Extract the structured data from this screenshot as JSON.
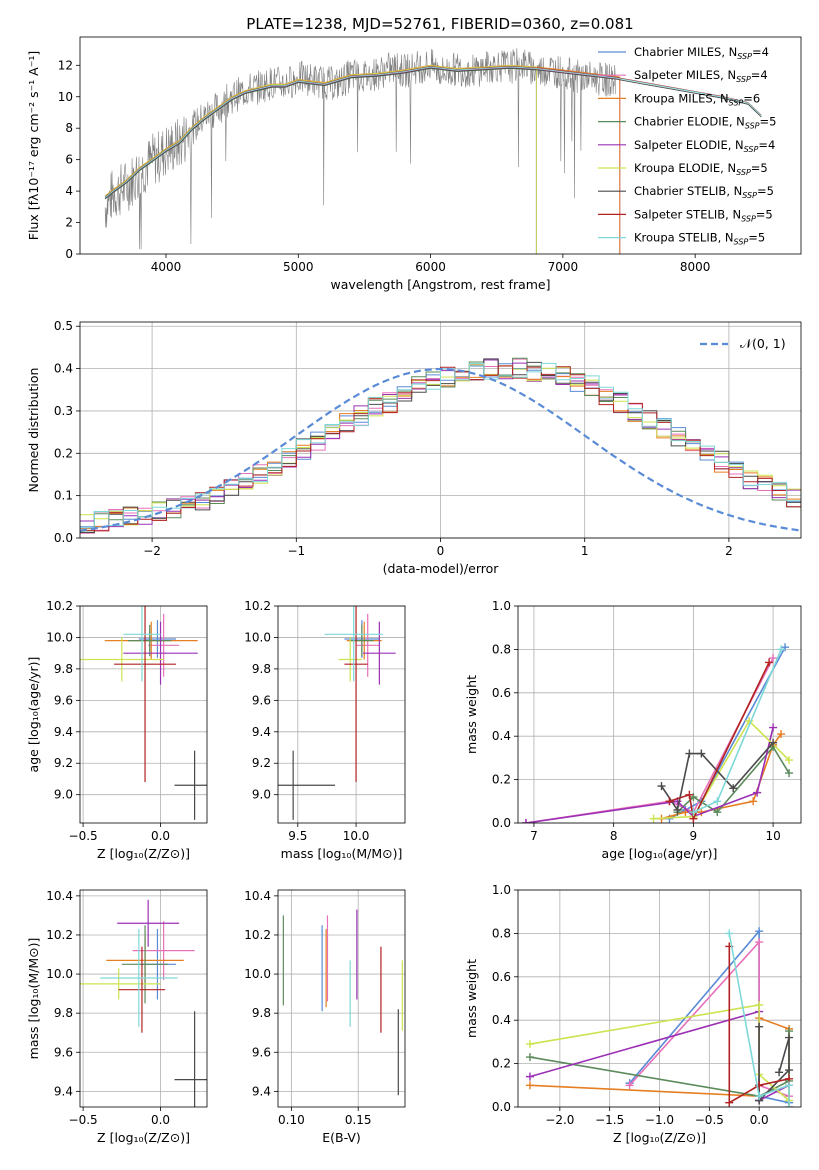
{
  "figure": {
    "title": "PLATE=1238, MJD=52761, FIBERID=0360, z=0.081"
  },
  "colors": {
    "Chabrier MILES": "#5a8bd6",
    "Salpeter MILES": "#e770b9",
    "Kroupa MILES": "#e67e22",
    "Chabrier ELODIE": "#5b8a5b",
    "Salpeter ELODIE": "#9b30b5",
    "Kroupa ELODIE": "#cde34f",
    "Chabrier STELIB": "#4a4a4a",
    "Salpeter STELIB": "#b22222",
    "Kroupa STELIB": "#7fd8d8",
    "data": "#808080",
    "normal": "#5a8bd6"
  },
  "chart_data": [
    {
      "id": "spectrum",
      "type": "line",
      "xlabel": "wavelength [Angstrom, rest frame]",
      "ylabel": "Flux [fλ10⁻¹⁷ erg cm⁻² s⁻¹ A⁻¹]",
      "xlim": [
        3350,
        8800
      ],
      "ylim": [
        0,
        13.8
      ],
      "xticks": [
        4000,
        5000,
        6000,
        7000,
        8000
      ],
      "yticks": [
        0,
        2,
        4,
        6,
        8,
        10,
        12
      ],
      "grid": false,
      "legend_position": "right",
      "data_line": {
        "x": [
          3540,
          3600,
          3700,
          3800,
          3900,
          3950,
          4000,
          4100,
          4200,
          4300,
          4400,
          4500,
          4600,
          4700,
          4800,
          4900,
          5000,
          5100,
          5200,
          5300,
          5400,
          5500,
          5600,
          5700,
          5800,
          5900,
          6000,
          6100,
          6200,
          6300,
          6400,
          6500,
          6600,
          6700,
          6800,
          6900,
          7000,
          7100,
          7200,
          7300,
          7400
        ],
        "y": [
          3.0,
          3.8,
          4.3,
          5.2,
          6.0,
          6.2,
          6.6,
          7.0,
          8.0,
          8.8,
          9.3,
          10.0,
          10.4,
          10.6,
          10.9,
          10.8,
          11.2,
          11.1,
          10.9,
          10.8,
          11.4,
          11.3,
          11.5,
          11.8,
          11.6,
          11.9,
          12.0,
          11.5,
          11.8,
          11.6,
          11.8,
          12.0,
          11.9,
          12.1,
          11.6,
          11.8,
          11.5,
          11.3,
          11.2,
          11.1,
          11.0
        ]
      },
      "model_line": {
        "x": [
          3540,
          3600,
          3700,
          3800,
          3900,
          4000,
          4100,
          4200,
          4300,
          4400,
          4500,
          4600,
          4700,
          4800,
          4900,
          5000,
          5200,
          5400,
          5600,
          5800,
          6000,
          6200,
          6400,
          6600,
          6800,
          7000,
          7200,
          7400,
          7600,
          7800,
          8000,
          8200,
          8400,
          8500
        ],
        "y": [
          3.6,
          4.0,
          4.6,
          5.4,
          6.0,
          6.6,
          7.1,
          8.0,
          8.7,
          9.3,
          9.9,
          10.3,
          10.5,
          10.7,
          10.7,
          11.0,
          10.8,
          11.3,
          11.4,
          11.6,
          11.9,
          11.7,
          11.8,
          11.9,
          11.8,
          11.6,
          11.4,
          11.2,
          10.9,
          10.6,
          10.3,
          10.0,
          9.6,
          8.8
        ]
      },
      "series": [
        {
          "name": "Chabrier MILES, N_SSP=4",
          "cut_x": 7430
        },
        {
          "name": "Salpeter MILES, N_SSP=4",
          "cut_x": 7430
        },
        {
          "name": "Kroupa MILES, N_SSP=6",
          "cut_x": 7430
        },
        {
          "name": "Chabrier ELODIE, N_SSP=5",
          "cut_x": 6800
        },
        {
          "name": "Salpeter ELODIE, N_SSP=4",
          "cut_x": 6800
        },
        {
          "name": "Kroupa ELODIE, N_SSP=5",
          "cut_x": 6800
        },
        {
          "name": "Chabrier STELIB, N_SSP=5",
          "cut_x": 8500
        },
        {
          "name": "Salpeter STELIB, N_SSP=5",
          "cut_x": 8500
        },
        {
          "name": "Kroupa STELIB, N_SSP=5",
          "cut_x": 8500
        }
      ]
    },
    {
      "id": "residuals",
      "type": "bar",
      "xlabel": "(data-model)/error",
      "ylabel": "Normed distribution",
      "xlim": [
        -2.5,
        2.5
      ],
      "ylim": [
        0,
        0.51
      ],
      "xticks": [
        -2,
        -1,
        0,
        1,
        2
      ],
      "yticks": [
        0.0,
        0.1,
        0.2,
        0.3,
        0.4,
        0.5
      ],
      "grid": true,
      "legend": "𝒩(0, 1)",
      "legend_position": "top-right",
      "bin_width": 0.1,
      "bin_start": -2.5,
      "mean_histogram": [
        0.035,
        0.04,
        0.045,
        0.05,
        0.055,
        0.06,
        0.07,
        0.075,
        0.09,
        0.1,
        0.115,
        0.13,
        0.15,
        0.17,
        0.19,
        0.21,
        0.23,
        0.25,
        0.27,
        0.29,
        0.31,
        0.32,
        0.34,
        0.36,
        0.37,
        0.38,
        0.39,
        0.395,
        0.4,
        0.4,
        0.4,
        0.395,
        0.39,
        0.385,
        0.37,
        0.36,
        0.34,
        0.32,
        0.3,
        0.28,
        0.26,
        0.24,
        0.22,
        0.2,
        0.18,
        0.16,
        0.14,
        0.125,
        0.11,
        0.095,
        0.085
      ]
    },
    {
      "id": "age-vs-Z",
      "type": "scatter",
      "xlabel": "Z [log₁₀(Z/Z⊙)]",
      "ylabel": "age  [log₁₀(age/yr)]",
      "xlim": [
        -0.52,
        0.3
      ],
      "ylim": [
        8.82,
        10.2
      ],
      "xticks": [
        -0.5,
        0.0
      ],
      "yticks": [
        9.0,
        9.2,
        9.4,
        9.6,
        9.8,
        10.0,
        10.2
      ],
      "grid": true,
      "points": [
        {
          "series": "Chabrier MILES",
          "x": -0.02,
          "y": 9.99,
          "xerr": 0.12,
          "yerr": 0.12
        },
        {
          "series": "Salpeter MILES",
          "x": 0.02,
          "y": 9.95,
          "xerr": 0.1,
          "yerr": 0.2
        },
        {
          "series": "Kroupa MILES",
          "x": -0.06,
          "y": 9.98,
          "xerr": 0.3,
          "yerr": 0.12
        },
        {
          "series": "Chabrier ELODIE",
          "x": -0.07,
          "y": 9.98,
          "xerr": 0.14,
          "yerr": 0.1
        },
        {
          "series": "Salpeter ELODIE",
          "x": 0.0,
          "y": 9.9,
          "xerr": 0.24,
          "yerr": 0.2
        },
        {
          "series": "Kroupa ELODIE",
          "x": -0.25,
          "y": 9.86,
          "xerr": 0.27,
          "yerr": 0.14
        },
        {
          "series": "Chabrier STELIB",
          "x": 0.22,
          "y": 9.06,
          "xerr": 0.13,
          "yerr": 0.22
        },
        {
          "series": "Salpeter STELIB",
          "x": -0.1,
          "y": 9.83,
          "xerr": 0.2,
          "yerr": 0.75
        },
        {
          "series": "Kroupa STELIB",
          "x": -0.12,
          "y": 10.02,
          "xerr": 0.12,
          "yerr": 0.3
        }
      ]
    },
    {
      "id": "age-vs-mass",
      "type": "scatter",
      "xlabel": "mass [log₁₀(M/M⊙)]",
      "ylabel": "",
      "xlim": [
        9.33,
        10.42
      ],
      "ylim": [
        8.82,
        10.2
      ],
      "xticks": [
        9.5,
        10.0
      ],
      "yticks": [
        9.0,
        9.2,
        9.4,
        9.6,
        9.8,
        10.0,
        10.2
      ],
      "grid": true,
      "points": [
        {
          "series": "Chabrier MILES",
          "x": 10.05,
          "y": 9.99,
          "xerr": 0.15,
          "yerr": 0.12
        },
        {
          "series": "Salpeter MILES",
          "x": 10.1,
          "y": 9.95,
          "xerr": 0.1,
          "yerr": 0.2
        },
        {
          "series": "Kroupa MILES",
          "x": 10.07,
          "y": 9.98,
          "xerr": 0.15,
          "yerr": 0.12
        },
        {
          "series": "Chabrier ELODIE",
          "x": 10.05,
          "y": 9.98,
          "xerr": 0.1,
          "yerr": 0.1
        },
        {
          "series": "Salpeter ELODIE",
          "x": 10.2,
          "y": 9.9,
          "xerr": 0.14,
          "yerr": 0.2
        },
        {
          "series": "Kroupa ELODIE",
          "x": 9.95,
          "y": 9.86,
          "xerr": 0.1,
          "yerr": 0.14
        },
        {
          "series": "Chabrier STELIB",
          "x": 9.46,
          "y": 9.06,
          "xerr": 0.36,
          "yerr": 0.22
        },
        {
          "series": "Salpeter STELIB",
          "x": 10.0,
          "y": 9.83,
          "xerr": 0.1,
          "yerr": 0.75
        },
        {
          "series": "Kroupa STELIB",
          "x": 9.98,
          "y": 10.02,
          "xerr": 0.25,
          "yerr": 0.3
        }
      ]
    },
    {
      "id": "massweight-vs-age",
      "type": "line",
      "xlabel": "age  [log₁₀(age/yr)]",
      "ylabel": "mass weight",
      "xlim": [
        6.8,
        10.35
      ],
      "ylim": [
        0,
        1.0
      ],
      "xticks": [
        7,
        8,
        9,
        10
      ],
      "yticks": [
        0.0,
        0.2,
        0.4,
        0.6,
        0.8,
        1.0
      ],
      "grid": true,
      "series": [
        {
          "name": "Chabrier MILES",
          "x": [
            8.7,
            8.9,
            9.1,
            10.15
          ],
          "y": [
            0.02,
            0.06,
            0.1,
            0.81
          ]
        },
        {
          "name": "Salpeter MILES",
          "x": [
            6.9,
            8.7,
            9.0,
            10.0
          ],
          "y": [
            0.0,
            0.1,
            0.05,
            0.76
          ]
        },
        {
          "name": "Kroupa MILES",
          "x": [
            8.6,
            8.9,
            9.1,
            9.75,
            10.0,
            10.1
          ],
          "y": [
            0.02,
            0.05,
            0.05,
            0.1,
            0.36,
            0.41
          ]
        },
        {
          "name": "Chabrier ELODIE",
          "x": [
            8.8,
            9.0,
            9.3,
            10.0,
            10.2
          ],
          "y": [
            0.05,
            0.12,
            0.05,
            0.35,
            0.23
          ]
        },
        {
          "name": "Salpeter ELODIE",
          "x": [
            6.9,
            8.8,
            9.0,
            9.8,
            10.0
          ],
          "y": [
            0.0,
            0.1,
            0.03,
            0.14,
            0.44
          ]
        },
        {
          "name": "Kroupa ELODIE",
          "x": [
            8.5,
            9.0,
            9.7,
            10.2
          ],
          "y": [
            0.02,
            0.03,
            0.47,
            0.29
          ]
        },
        {
          "name": "Chabrier STELIB",
          "x": [
            8.6,
            8.8,
            8.95,
            9.1,
            9.5,
            10.0
          ],
          "y": [
            0.17,
            0.06,
            0.32,
            0.32,
            0.16,
            0.37
          ]
        },
        {
          "name": "Salpeter STELIB",
          "x": [
            8.7,
            8.95,
            9.0,
            9.95
          ],
          "y": [
            0.1,
            0.13,
            0.02,
            0.74
          ]
        },
        {
          "name": "Kroupa STELIB",
          "x": [
            9.0,
            9.3,
            10.1
          ],
          "y": [
            0.05,
            0.1,
            0.8
          ]
        }
      ]
    },
    {
      "id": "mass-vs-Z",
      "type": "scatter",
      "xlabel": "Z [log₁₀(Z/Z⊙)]",
      "ylabel": "mass [log₁₀(M/M⊙)]",
      "xlim": [
        -0.52,
        0.3
      ],
      "ylim": [
        9.32,
        10.43
      ],
      "xticks": [
        -0.5,
        0.0
      ],
      "yticks": [
        9.4,
        9.6,
        9.8,
        10.0,
        10.2,
        10.4
      ],
      "grid": true,
      "points": [
        {
          "series": "Chabrier MILES",
          "x": -0.02,
          "y": 10.05,
          "xerr": 0.12,
          "yerr": 0.18
        },
        {
          "series": "Salpeter MILES",
          "x": 0.02,
          "y": 10.12,
          "xerr": 0.2,
          "yerr": 0.15
        },
        {
          "series": "Kroupa MILES",
          "x": -0.1,
          "y": 10.07,
          "xerr": 0.25,
          "yerr": 0.12
        },
        {
          "series": "Chabrier ELODIE",
          "x": -0.1,
          "y": 10.05,
          "xerr": 0.15,
          "yerr": 0.2
        },
        {
          "series": "Salpeter ELODIE",
          "x": -0.08,
          "y": 10.26,
          "xerr": 0.2,
          "yerr": 0.12
        },
        {
          "series": "Kroupa ELODIE",
          "x": -0.27,
          "y": 9.95,
          "xerr": 0.27,
          "yerr": 0.08
        },
        {
          "series": "Chabrier STELIB",
          "x": 0.22,
          "y": 9.46,
          "xerr": 0.13,
          "yerr": 0.35
        },
        {
          "series": "Salpeter STELIB",
          "x": -0.12,
          "y": 9.92,
          "xerr": 0.15,
          "yerr": 0.22
        },
        {
          "series": "Kroupa STELIB",
          "x": -0.14,
          "y": 9.98,
          "xerr": 0.25,
          "yerr": 0.25
        }
      ]
    },
    {
      "id": "mass-vs-ebv",
      "type": "scatter",
      "xlabel": "E(B-V)",
      "ylabel": "",
      "xlim": [
        0.09,
        0.185
      ],
      "ylim": [
        9.32,
        10.43
      ],
      "xticks": [
        0.1,
        0.15
      ],
      "yticks": [
        9.4,
        9.6,
        9.8,
        10.0,
        10.2,
        10.4
      ],
      "grid": true,
      "points": [
        {
          "series": "Chabrier MILES",
          "x": 0.123,
          "y": 10.03,
          "xerr": 0.0,
          "yerr": 0.22
        },
        {
          "series": "Salpeter MILES",
          "x": 0.127,
          "y": 10.08,
          "xerr": 0.0,
          "yerr": 0.22
        },
        {
          "series": "Kroupa MILES",
          "x": 0.126,
          "y": 10.03,
          "xerr": 0.0,
          "yerr": 0.2
        },
        {
          "series": "Chabrier ELODIE",
          "x": 0.094,
          "y": 10.07,
          "xerr": 0.0,
          "yerr": 0.23
        },
        {
          "series": "Salpeter ELODIE",
          "x": 0.149,
          "y": 10.1,
          "xerr": 0.0,
          "yerr": 0.23
        },
        {
          "series": "Kroupa ELODIE",
          "x": 0.183,
          "y": 9.89,
          "xerr": 0.0,
          "yerr": 0.18
        },
        {
          "series": "Chabrier STELIB",
          "x": 0.18,
          "y": 9.6,
          "xerr": 0.0,
          "yerr": 0.22
        },
        {
          "series": "Salpeter STELIB",
          "x": 0.167,
          "y": 9.92,
          "xerr": 0.0,
          "yerr": 0.22
        },
        {
          "series": "Kroupa STELIB",
          "x": 0.144,
          "y": 9.9,
          "xerr": 0.0,
          "yerr": 0.17
        }
      ]
    },
    {
      "id": "massweight-vs-Z",
      "type": "line",
      "xlabel": "Z [log₁₀(Z/Z⊙)]",
      "ylabel": "mass weight",
      "xlim": [
        -2.42,
        0.42
      ],
      "ylim": [
        0,
        1.0
      ],
      "xticks": [
        -2.0,
        -1.5,
        -1.0,
        -0.5,
        0.0
      ],
      "yticks": [
        0.0,
        0.2,
        0.4,
        0.6,
        0.8,
        1.0
      ],
      "grid": true,
      "series": [
        {
          "name": "Chabrier MILES",
          "x": [
            -1.3,
            0.0,
            0.0,
            0.3
          ],
          "y": [
            0.11,
            0.81,
            0.05,
            0.02
          ]
        },
        {
          "name": "Salpeter MILES",
          "x": [
            -1.3,
            0.0,
            0.0,
            0.3
          ],
          "y": [
            0.1,
            0.76,
            0.1,
            0.05
          ]
        },
        {
          "name": "Kroupa MILES",
          "x": [
            -2.3,
            0.0,
            0.0,
            0.3,
            0.3
          ],
          "y": [
            0.1,
            0.05,
            0.41,
            0.36,
            0.0
          ]
        },
        {
          "name": "Chabrier ELODIE",
          "x": [
            -2.3,
            0.0,
            0.3,
            0.3
          ],
          "y": [
            0.23,
            0.05,
            0.12,
            0.35
          ]
        },
        {
          "name": "Salpeter ELODIE",
          "x": [
            -2.3,
            0.0,
            0.0,
            0.3
          ],
          "y": [
            0.14,
            0.44,
            0.03,
            0.1
          ]
        },
        {
          "name": "Kroupa ELODIE",
          "x": [
            -2.3,
            0.0,
            0.0,
            0.3
          ],
          "y": [
            0.29,
            0.47,
            0.15,
            0.03
          ]
        },
        {
          "name": "Chabrier STELIB",
          "x": [
            0.0,
            0.0,
            0.3,
            0.3,
            0.2
          ],
          "y": [
            0.37,
            0.03,
            0.17,
            0.32,
            0.16
          ]
        },
        {
          "name": "Salpeter STELIB",
          "x": [
            -0.3,
            -0.3,
            0.0,
            0.3
          ],
          "y": [
            0.74,
            0.02,
            0.1,
            0.13
          ]
        },
        {
          "name": "Kroupa STELIB",
          "x": [
            -0.3,
            0.0,
            0.3,
            0.3
          ],
          "y": [
            0.8,
            0.05,
            0.1,
            0.0
          ]
        }
      ]
    }
  ]
}
